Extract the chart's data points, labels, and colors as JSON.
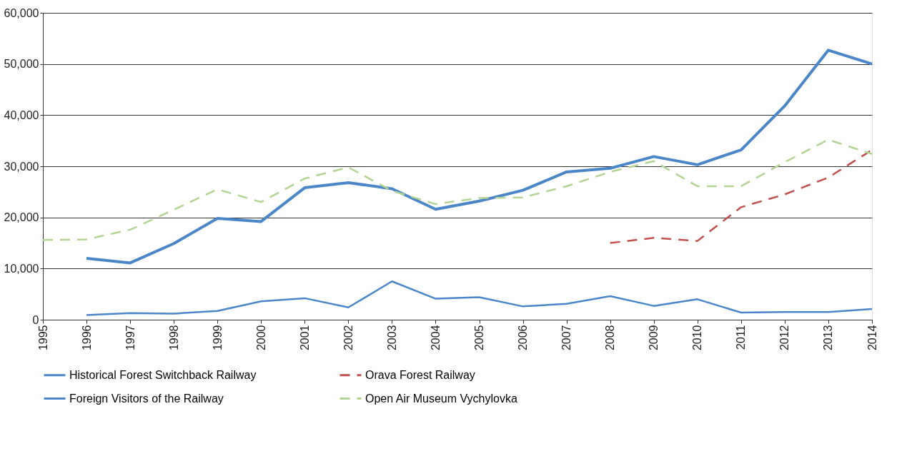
{
  "chart_data": {
    "type": "line",
    "x": [
      1995,
      1996,
      1997,
      1998,
      1999,
      2000,
      2001,
      2002,
      2003,
      2004,
      2005,
      2006,
      2007,
      2008,
      2009,
      2010,
      2011,
      2012,
      2013,
      2014
    ],
    "series": [
      {
        "name": "Historical Forest Switchback Railway",
        "color": "#4a86c8",
        "line_style": "solid",
        "values": [
          null,
          12000,
          11100,
          14900,
          19800,
          19200,
          25800,
          26800,
          25600,
          21600,
          23200,
          25300,
          28900,
          29600,
          31900,
          30300,
          33200,
          41800,
          52700,
          50000
        ]
      },
      {
        "name": "Foreign Visitors of the Railway",
        "color": "#4a86c8",
        "line_style": "solid",
        "values": [
          null,
          900,
          1300,
          1200,
          1700,
          3600,
          4200,
          2400,
          7500,
          4100,
          4400,
          2600,
          3100,
          4600,
          2700,
          4000,
          1400,
          1500,
          1500,
          2100
        ]
      },
      {
        "name": "Orava Forest Railway",
        "color": "#c0504d",
        "line_style": "dashed",
        "values": [
          null,
          null,
          null,
          null,
          null,
          null,
          null,
          null,
          null,
          null,
          null,
          null,
          null,
          15000,
          16000,
          15400,
          22000,
          24500,
          27800,
          33200
        ]
      },
      {
        "name": "Open Air Museum Vychylovka",
        "color": "#b3d494",
        "line_style": "dashed",
        "values": [
          15600,
          15700,
          17600,
          21500,
          25500,
          23000,
          27600,
          29800,
          25200,
          22600,
          23800,
          23900,
          26100,
          28900,
          31000,
          26100,
          26100,
          30800,
          35200,
          32400
        ]
      }
    ],
    "xlim": [
      1995,
      2014
    ],
    "xticks": [
      1995,
      1996,
      1997,
      1998,
      1999,
      2000,
      2001,
      2002,
      2003,
      2004,
      2005,
      2006,
      2007,
      2008,
      2009,
      2010,
      2011,
      2012,
      2013,
      2014
    ],
    "ylim": [
      0,
      60000
    ],
    "yticks": [
      {
        "value": 0,
        "label": "0"
      },
      {
        "value": 10000,
        "label": "10,000"
      },
      {
        "value": 20000,
        "label": "20,000"
      },
      {
        "value": 30000,
        "label": "30,000"
      },
      {
        "value": 40000,
        "label": "40,000"
      },
      {
        "value": 50000,
        "label": "50,000"
      },
      {
        "value": 60000,
        "label": "60,000"
      }
    ],
    "grid": "y",
    "legend": "bottom",
    "marker": "none"
  }
}
